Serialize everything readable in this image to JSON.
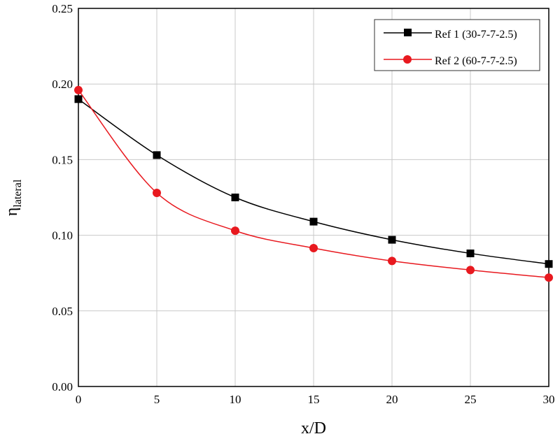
{
  "chart_data": {
    "type": "line",
    "title": "",
    "xlabel": "x/D",
    "ylabel_main": "η",
    "ylabel_sub": "lateral",
    "xlim": [
      0,
      30
    ],
    "ylim": [
      0,
      0.25
    ],
    "xticks": [
      0,
      5,
      10,
      15,
      20,
      25,
      30
    ],
    "yticks": [
      0,
      0.05,
      0.1,
      0.15,
      0.2,
      0.25
    ],
    "xtick_labels": [
      "0",
      "5",
      "10",
      "15",
      "20",
      "25",
      "30"
    ],
    "ytick_labels": [
      "0.00",
      "0.05",
      "0.10",
      "0.15",
      "0.20",
      "0.25"
    ],
    "grid": true,
    "legend_placement": "top-right",
    "x": [
      0,
      5,
      10,
      15,
      20,
      25,
      30
    ],
    "series": [
      {
        "name": "Ref 1 (30-7-7-2.5)",
        "color": "#000000",
        "marker": "square",
        "values": [
          0.19,
          0.153,
          0.125,
          0.109,
          0.097,
          0.088,
          0.081
        ]
      },
      {
        "name": "Ref 2 (60-7-7-2.5)",
        "color": "#e8191f",
        "marker": "circle",
        "values": [
          0.196,
          0.128,
          0.103,
          0.0915,
          0.083,
          0.077,
          0.072
        ]
      }
    ]
  }
}
